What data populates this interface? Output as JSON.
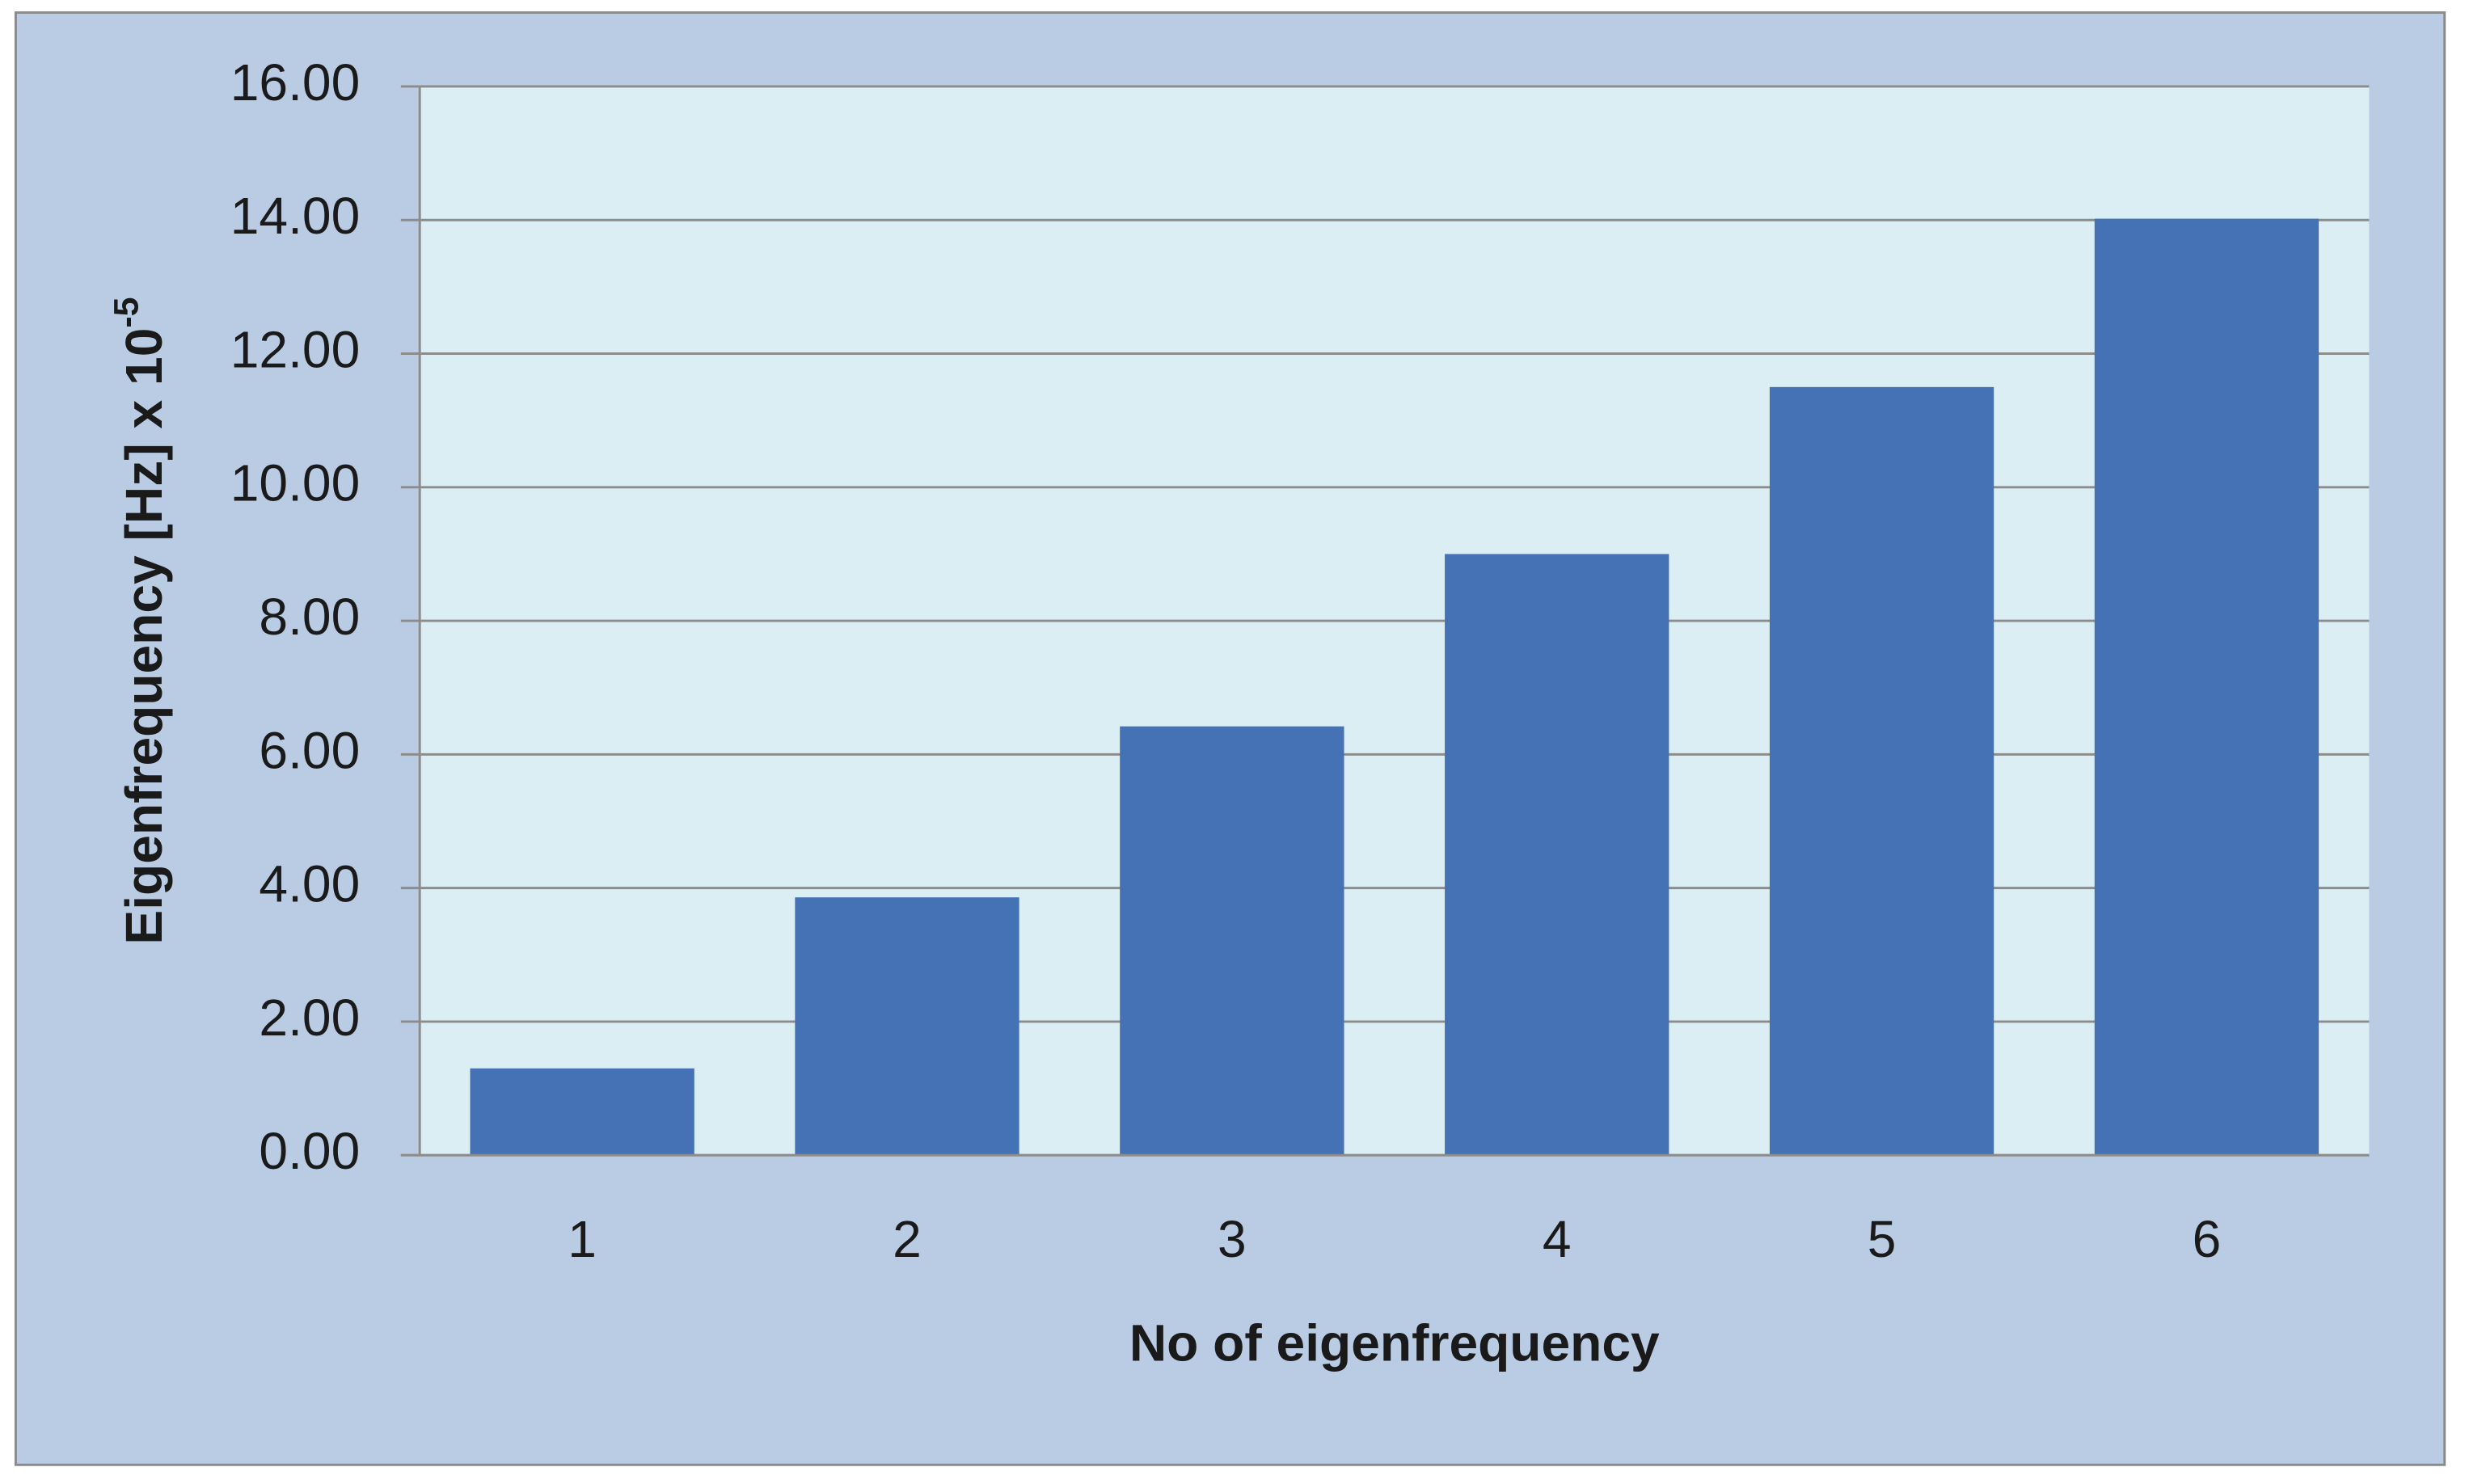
{
  "chart_data": {
    "type": "bar",
    "x_label": "No of eigenfrequency",
    "y_label": "Eigenfrequency [Hz] x 10",
    "y_label_exponent": "-5",
    "categories": [
      "1",
      "2",
      "3",
      "4",
      "5",
      "6"
    ],
    "values": [
      1.3,
      3.86,
      6.42,
      9.0,
      11.5,
      14.02
    ],
    "color": "#4472b4",
    "ylim": [
      0,
      16
    ],
    "yticks": [
      {
        "value": 0,
        "label": "0.00"
      },
      {
        "value": 2,
        "label": "2.00"
      },
      {
        "value": 4,
        "label": "4.00"
      },
      {
        "value": 6,
        "label": "6.00"
      },
      {
        "value": 8,
        "label": "8.00"
      },
      {
        "value": 10,
        "label": "10.00"
      },
      {
        "value": 12,
        "label": "12.00"
      },
      {
        "value": 14,
        "label": "14.00"
      },
      {
        "value": 16,
        "label": "16.00"
      }
    ],
    "grid": true
  }
}
